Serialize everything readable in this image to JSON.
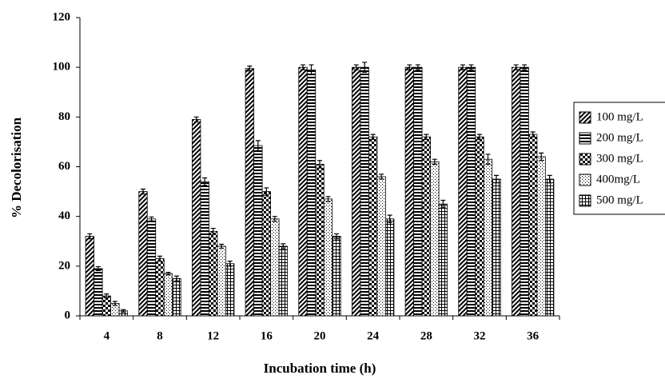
{
  "chart_data": {
    "type": "bar",
    "xlabel": "Incubation time (h)",
    "ylabel": "% Decolorisation",
    "categories": [
      "4",
      "8",
      "12",
      "16",
      "20",
      "24",
      "28",
      "32",
      "36"
    ],
    "series": [
      {
        "name": "100 mg/L",
        "values": [
          32,
          50,
          79,
          99.5,
          100,
          100,
          100,
          100,
          100
        ],
        "errors": [
          1,
          1,
          1,
          1,
          1,
          1,
          1,
          1,
          1
        ]
      },
      {
        "name": "200 mg/L",
        "values": [
          19,
          39,
          54,
          68.5,
          99,
          100,
          100,
          100,
          100
        ],
        "errors": [
          0.8,
          0.8,
          1.5,
          2,
          2,
          2,
          1,
          1,
          1
        ]
      },
      {
        "name": "300 mg/L",
        "values": [
          8,
          23,
          34,
          50,
          61,
          72,
          72,
          72,
          73
        ],
        "errors": [
          0.8,
          1,
          1.2,
          1.5,
          1.5,
          1,
          1,
          1,
          1
        ]
      },
      {
        "name": "400mg/L",
        "values": [
          5,
          17,
          28,
          39,
          47,
          56,
          62,
          63,
          64
        ],
        "errors": [
          0.8,
          0.5,
          0.8,
          1,
          1,
          1,
          1,
          2,
          1.5
        ]
      },
      {
        "name": "500 mg/L",
        "values": [
          2,
          15,
          21,
          28,
          32,
          39,
          45,
          55,
          55
        ],
        "errors": [
          0.5,
          1,
          1,
          1,
          1,
          1.5,
          1.5,
          1.5,
          1.5
        ]
      }
    ],
    "ylim": [
      0,
      120
    ],
    "yticks": [
      0,
      20,
      40,
      60,
      80,
      100,
      120
    ]
  }
}
